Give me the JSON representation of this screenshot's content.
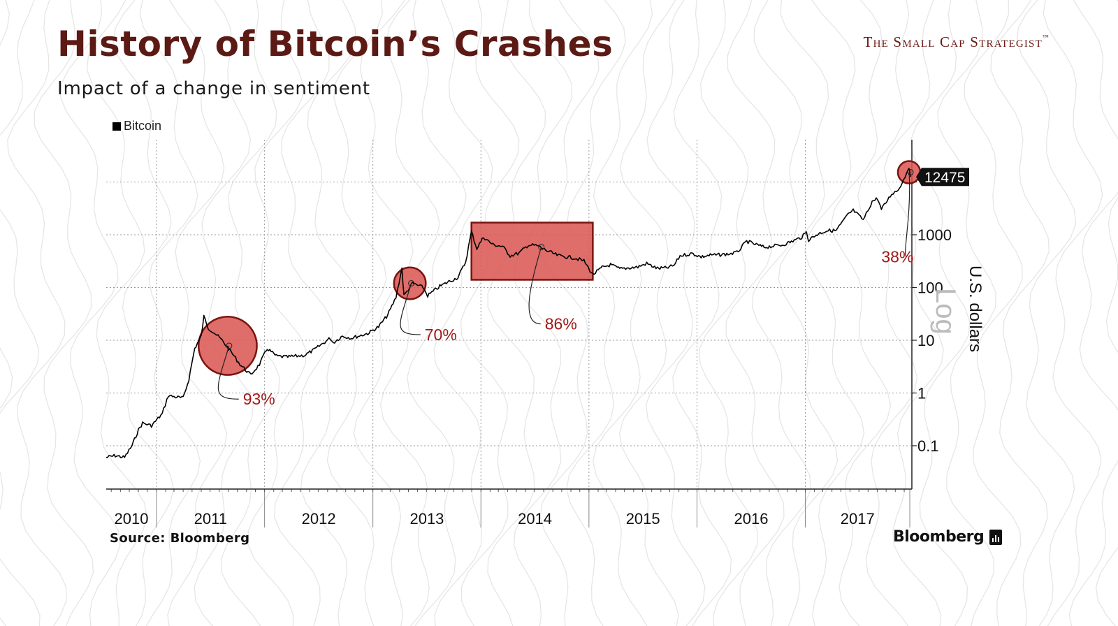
{
  "header": {
    "title": "History of Bitcoin’s Crashes",
    "subtitle": "Impact of a change in sentiment",
    "brand": "The Small Cap Strategist",
    "brand_tm": "™"
  },
  "footer": {
    "source": "Source:  Bloomberg",
    "logo_text": "Bloomberg"
  },
  "colors": {
    "title": "#5c1a14",
    "highlight_fill": "#d9534f",
    "highlight_stroke": "#7a1410",
    "annotation_text": "#a01818",
    "price_line": "#000000",
    "last_price_badge": "#111111"
  },
  "chart_data": {
    "type": "line",
    "title": "",
    "legend": [
      "Bitcoin"
    ],
    "legend_placement": "top-left",
    "xlabel": "",
    "ylabel": "U.S. dollars",
    "scale_label": "Log",
    "y_scale": "log",
    "y_ticks": [
      0.1,
      1,
      10,
      100,
      1000,
      10000
    ],
    "y_tick_labels": [
      "0.1",
      "1",
      "10",
      "100",
      "1000",
      ""
    ],
    "x_ticks": [
      "2010",
      "2011",
      "2012",
      "2013",
      "2014",
      "2015",
      "2016",
      "2017"
    ],
    "grid": true,
    "last_value_label": "12475",
    "series": [
      {
        "name": "Bitcoin",
        "points": [
          [
            "2010-07-15",
            0.06
          ],
          [
            "2010-08-15",
            0.065
          ],
          [
            "2010-09-15",
            0.06
          ],
          [
            "2010-10-10",
            0.1
          ],
          [
            "2010-11-01",
            0.2
          ],
          [
            "2010-11-15",
            0.27
          ],
          [
            "2010-12-15",
            0.24
          ],
          [
            "2011-01-20",
            0.4
          ],
          [
            "2011-02-10",
            0.9
          ],
          [
            "2011-03-01",
            0.85
          ],
          [
            "2011-04-01",
            0.8
          ],
          [
            "2011-04-20",
            1.8
          ],
          [
            "2011-05-10",
            7
          ],
          [
            "2011-06-01",
            12
          ],
          [
            "2011-06-10",
            28
          ],
          [
            "2011-06-25",
            17
          ],
          [
            "2011-07-15",
            14
          ],
          [
            "2011-08-10",
            10
          ],
          [
            "2011-09-10",
            6
          ],
          [
            "2011-10-10",
            3.5
          ],
          [
            "2011-11-15",
            2.2
          ],
          [
            "2011-12-15",
            3.5
          ],
          [
            "2012-01-10",
            7
          ],
          [
            "2012-02-10",
            5
          ],
          [
            "2012-03-15",
            4.8
          ],
          [
            "2012-04-15",
            5
          ],
          [
            "2012-05-15",
            5.2
          ],
          [
            "2012-06-15",
            6.5
          ],
          [
            "2012-08-10",
            11
          ],
          [
            "2012-08-20",
            9
          ],
          [
            "2012-09-20",
            12
          ],
          [
            "2012-10-20",
            11
          ],
          [
            "2012-12-15",
            13.5
          ],
          [
            "2013-01-20",
            18
          ],
          [
            "2013-02-20",
            30
          ],
          [
            "2013-03-20",
            65
          ],
          [
            "2013-04-09",
            230
          ],
          [
            "2013-04-16",
            70
          ],
          [
            "2013-05-15",
            120
          ],
          [
            "2013-06-20",
            100
          ],
          [
            "2013-07-05",
            70
          ],
          [
            "2013-08-15",
            105
          ],
          [
            "2013-09-15",
            130
          ],
          [
            "2013-10-15",
            155
          ],
          [
            "2013-11-10",
            300
          ],
          [
            "2013-11-30",
            1150
          ],
          [
            "2013-12-18",
            550
          ],
          [
            "2014-01-10",
            900
          ],
          [
            "2014-02-10",
            650
          ],
          [
            "2014-03-15",
            600
          ],
          [
            "2014-04-10",
            400
          ],
          [
            "2014-05-10",
            450
          ],
          [
            "2014-06-10",
            640
          ],
          [
            "2014-07-10",
            620
          ],
          [
            "2014-08-18",
            480
          ],
          [
            "2014-09-20",
            400
          ],
          [
            "2014-10-20",
            380
          ],
          [
            "2014-11-15",
            360
          ],
          [
            "2014-12-15",
            320
          ],
          [
            "2015-01-14",
            175
          ],
          [
            "2015-02-15",
            240
          ],
          [
            "2015-03-15",
            270
          ],
          [
            "2015-04-15",
            225
          ],
          [
            "2015-05-15",
            235
          ],
          [
            "2015-06-15",
            245
          ],
          [
            "2015-07-15",
            285
          ],
          [
            "2015-08-20",
            230
          ],
          [
            "2015-09-20",
            235
          ],
          [
            "2015-10-15",
            260
          ],
          [
            "2015-11-05",
            400
          ],
          [
            "2015-12-15",
            440
          ],
          [
            "2016-01-15",
            380
          ],
          [
            "2016-02-15",
            410
          ],
          [
            "2016-03-15",
            415
          ],
          [
            "2016-04-15",
            430
          ],
          [
            "2016-05-15",
            460
          ],
          [
            "2016-06-17",
            750
          ],
          [
            "2016-07-15",
            660
          ],
          [
            "2016-08-15",
            580
          ],
          [
            "2016-09-15",
            610
          ],
          [
            "2016-10-15",
            640
          ],
          [
            "2016-11-15",
            740
          ],
          [
            "2016-12-20",
            900
          ],
          [
            "2017-01-05",
            1100
          ],
          [
            "2017-01-12",
            800
          ],
          [
            "2017-02-15",
            1050
          ],
          [
            "2017-03-15",
            1200
          ],
          [
            "2017-04-15",
            1200
          ],
          [
            "2017-05-25",
            2400
          ],
          [
            "2017-06-12",
            2900
          ],
          [
            "2017-07-16",
            1900
          ],
          [
            "2017-08-15",
            4300
          ],
          [
            "2017-09-02",
            4900
          ],
          [
            "2017-09-15",
            3000
          ],
          [
            "2017-10-20",
            6000
          ],
          [
            "2017-11-10",
            7000
          ],
          [
            "2017-11-29",
            11000
          ],
          [
            "2017-12-17",
            19500
          ],
          [
            "2017-12-22",
            12475
          ]
        ]
      }
    ],
    "annotations": [
      {
        "label": "93%",
        "shape": "circle",
        "from": "2011-06-10",
        "to": "2011-11-18",
        "y_range": [
          2.2,
          28
        ],
        "text_date": "2011-10-20",
        "text_value": 0.6
      },
      {
        "label": "70%",
        "shape": "circle",
        "from": "2013-04-01",
        "to": "2013-06-10",
        "y_range": [
          60,
          240
        ],
        "text_date": "2013-06-25",
        "text_value": 10
      },
      {
        "label": "86%",
        "shape": "rect",
        "from": "2013-11-30",
        "to": "2015-01-14",
        "y_range": [
          140,
          1700
        ],
        "text_date": "2014-08-05",
        "text_value": 16
      },
      {
        "label": "38%",
        "shape": "circle",
        "from": "2017-12-10",
        "to": "2017-12-25",
        "y_range": [
          12000,
          19500
        ],
        "text_date": "2017-09-15",
        "text_value": 300
      }
    ]
  }
}
